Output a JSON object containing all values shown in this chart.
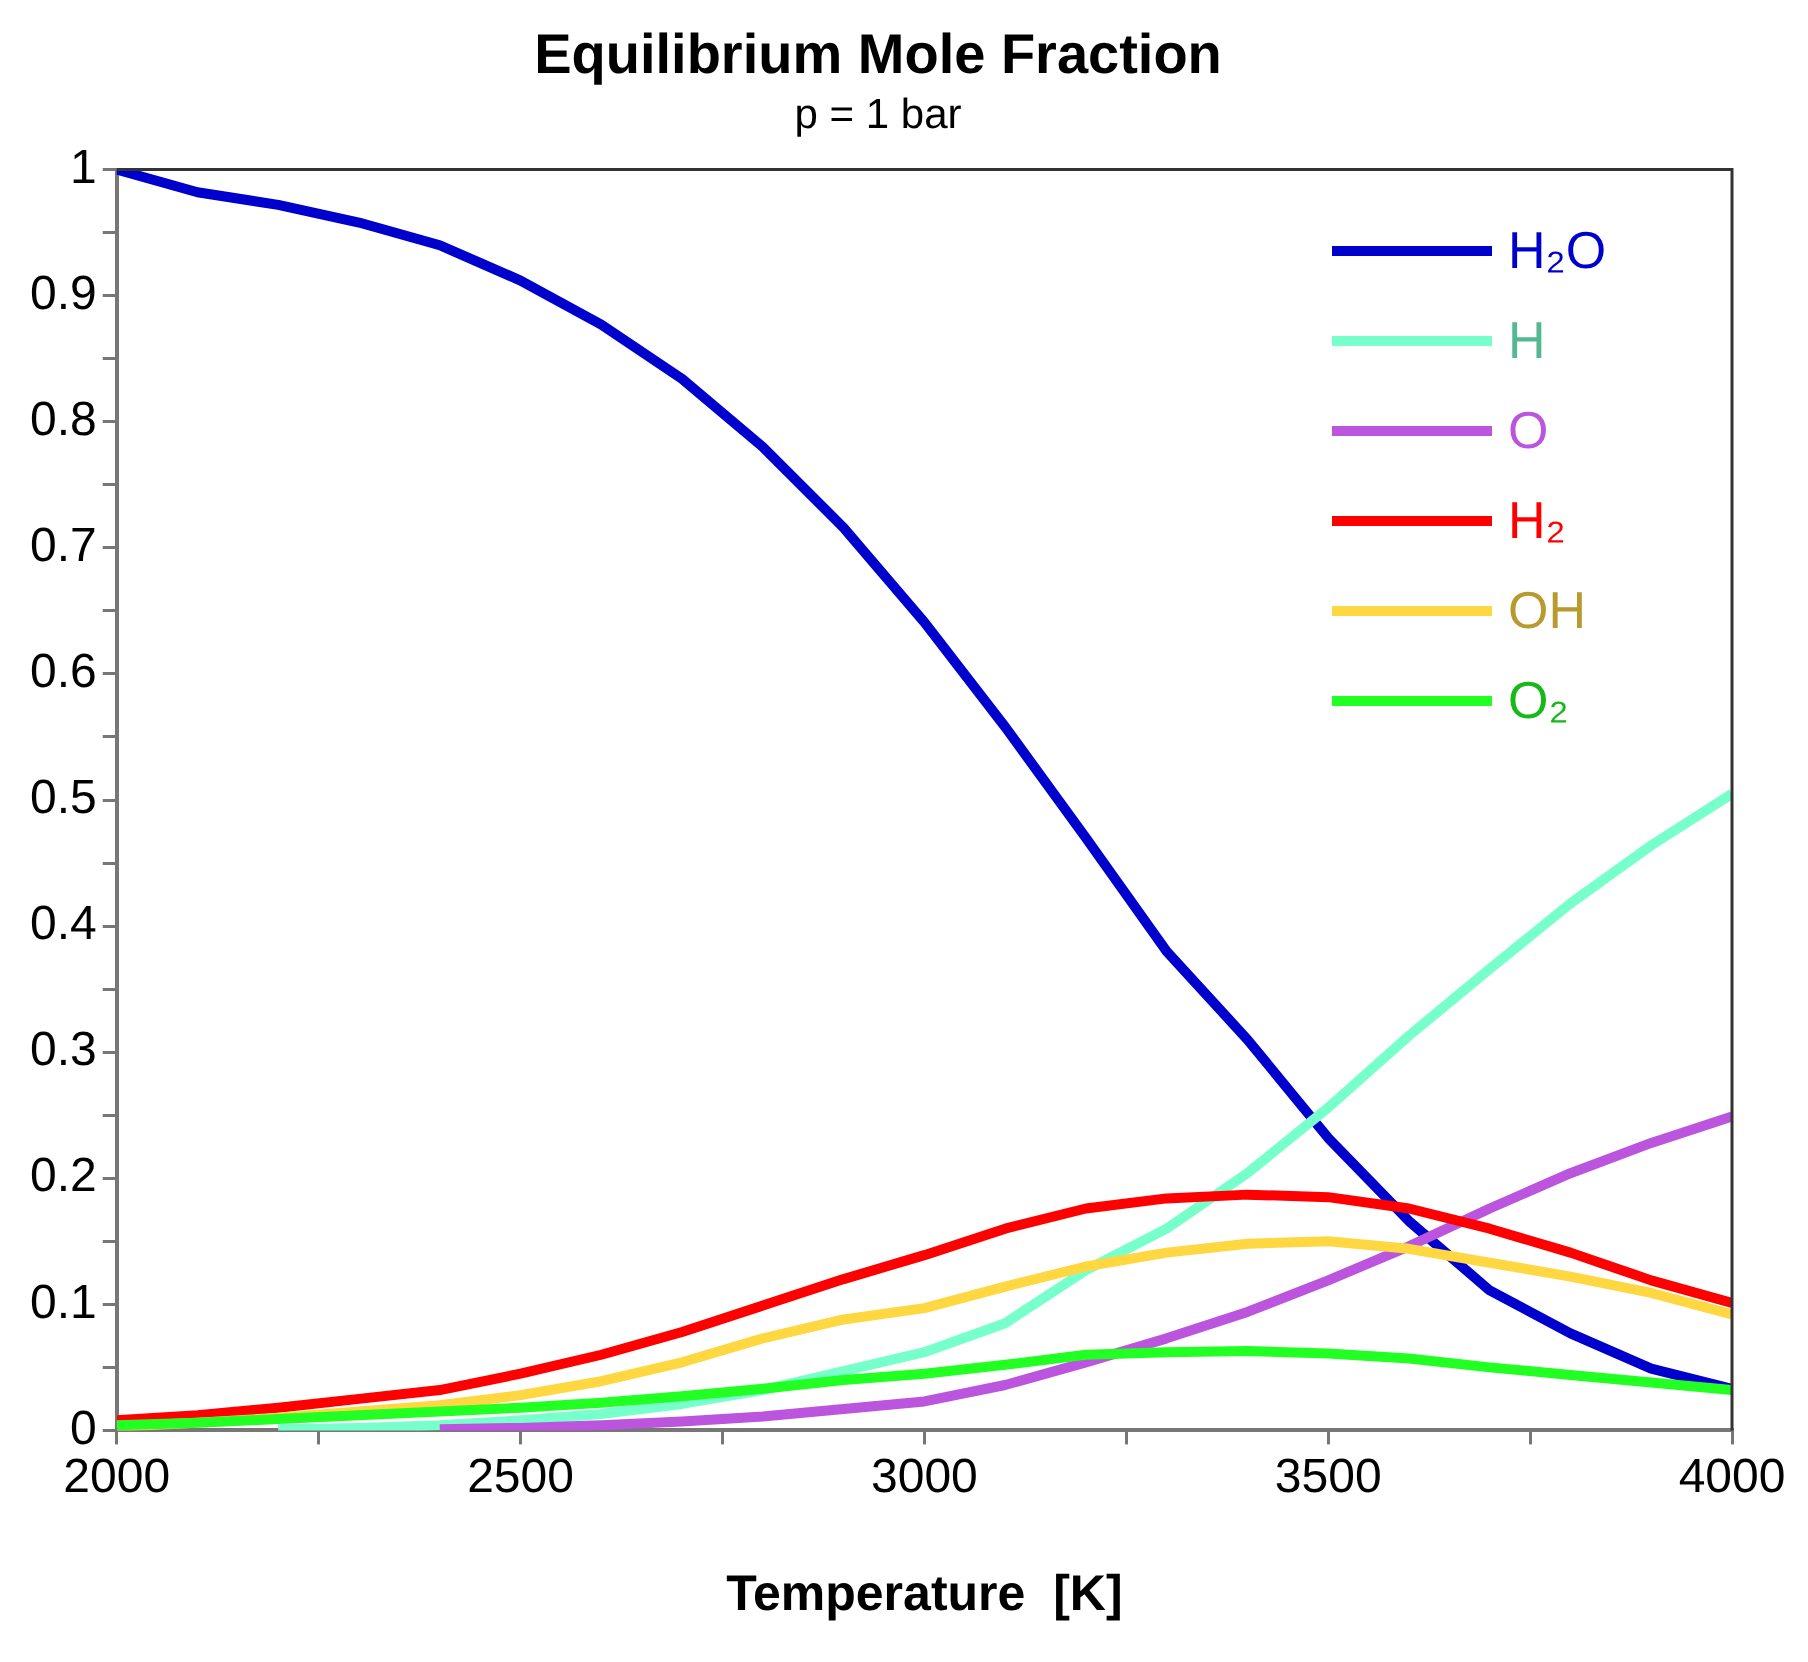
{
  "chart_data": {
    "type": "line",
    "title": "Equilibrium Mole Fraction",
    "subtitle": "p = 1 bar",
    "xlabel": "Temperature  [K]",
    "x": [
      2000,
      2100,
      2200,
      2300,
      2400,
      2500,
      2600,
      2700,
      2800,
      2900,
      3000,
      3100,
      3200,
      3300,
      3400,
      3500,
      3600,
      3700,
      3800,
      3900,
      4000
    ],
    "xlim": [
      2000,
      4000
    ],
    "xticks": [
      2000,
      {
        "value": 2250,
        "label": null
      },
      2500,
      {
        "value": 2750,
        "label": null
      },
      3000,
      {
        "value": 3250,
        "label": null
      },
      3500,
      {
        "value": 3750,
        "label": null
      },
      4000
    ],
    "ylim": [
      0,
      1
    ],
    "yticks": [
      0,
      {
        "value": 0.05,
        "label": null
      },
      0.1,
      {
        "value": 0.15,
        "label": null
      },
      0.2,
      {
        "value": 0.25,
        "label": null
      },
      0.3,
      {
        "value": 0.35,
        "label": null
      },
      0.4,
      {
        "value": 0.45,
        "label": null
      },
      0.5,
      {
        "value": 0.55,
        "label": null
      },
      0.6,
      {
        "value": 0.65,
        "label": null
      },
      0.7,
      {
        "value": 0.75,
        "label": null
      },
      0.8,
      {
        "value": 0.85,
        "label": null
      },
      0.9,
      {
        "value": 0.95,
        "label": null
      },
      1
    ],
    "grid": false,
    "legend": "top right",
    "marker": "none",
    "line_style": "solid",
    "series": [
      {
        "name": "H₂O",
        "color": "#0000cc",
        "values": [
          1.0,
          0.982,
          0.972,
          0.958,
          0.94,
          0.912,
          0.877,
          0.834,
          0.78,
          0.716,
          0.641,
          0.558,
          0.47,
          0.38,
          0.31,
          0.232,
          0.166,
          0.111,
          0.077,
          0.049,
          0.033
        ]
      },
      {
        "name": "H",
        "color": "#77ffcc",
        "values": [
          null,
          null,
          0.001,
          0.002,
          0.004,
          0.008,
          0.013,
          0.021,
          0.032,
          0.047,
          0.062,
          0.085,
          0.127,
          0.16,
          0.204,
          0.256,
          0.313,
          0.366,
          0.418,
          0.464,
          0.505
        ]
      },
      {
        "name": "O",
        "color": "#bb55dd",
        "values": [
          null,
          null,
          null,
          null,
          0.001,
          0.002,
          0.004,
          0.007,
          0.011,
          0.017,
          0.023,
          0.036,
          0.054,
          0.073,
          0.094,
          0.119,
          0.146,
          0.176,
          0.204,
          0.228,
          0.249
        ]
      },
      {
        "name": "H₂",
        "color": "#ff0000",
        "values": [
          0.008,
          0.012,
          0.018,
          0.025,
          0.032,
          0.045,
          0.06,
          0.078,
          0.099,
          0.12,
          0.139,
          0.16,
          0.176,
          0.184,
          0.187,
          0.185,
          0.176,
          0.16,
          0.141,
          0.119,
          0.101
        ]
      },
      {
        "name": "OH",
        "color": "#ffd740",
        "values": [
          0.003,
          0.006,
          0.01,
          0.015,
          0.02,
          0.028,
          0.039,
          0.054,
          0.073,
          0.088,
          0.097,
          0.114,
          0.13,
          0.141,
          0.148,
          0.15,
          0.144,
          0.133,
          0.122,
          0.109,
          0.092
        ]
      },
      {
        "name": "O₂",
        "color": "#22ff22",
        "values": [
          0.004,
          0.006,
          0.009,
          0.012,
          0.015,
          0.018,
          0.022,
          0.027,
          0.033,
          0.04,
          0.045,
          0.052,
          0.06,
          0.062,
          0.063,
          0.061,
          0.057,
          0.05,
          0.044,
          0.038,
          0.032
        ]
      }
    ]
  }
}
